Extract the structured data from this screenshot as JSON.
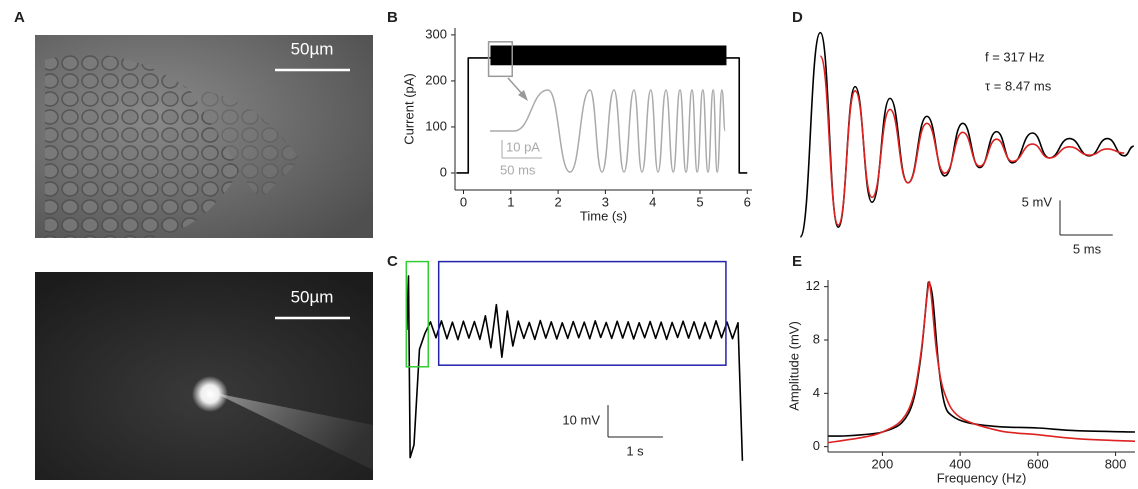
{
  "panel_labels": [
    "A",
    "B",
    "C",
    "D",
    "E"
  ],
  "images": [
    {
      "scale_bar_label": "50µm"
    },
    {
      "scale_bar_label": "50µm"
    }
  ],
  "chart_data": [
    {
      "type": "line",
      "xlabel": "Time (s)",
      "ylabel": "Current (pA)",
      "xlim": [
        -0.18,
        6.1
      ],
      "xticks": [
        0,
        1,
        2,
        3,
        4,
        5,
        6
      ],
      "ylim": [
        -37,
        315
      ],
      "yticks": [
        0,
        100,
        200,
        300
      ],
      "series": [
        {
          "color": "#000000",
          "x": [
            -0.15,
            0.1,
            0.1,
            5.83,
            5.83,
            6.0
          ],
          "values": [
            0,
            0,
            250,
            250,
            0,
            0
          ]
        }
      ],
      "bands": [
        {
          "color": "#000000",
          "x": [
            0.57,
            5.56
          ],
          "y": [
            234,
            277
          ]
        }
      ],
      "boxes": [
        {
          "color": "#999999",
          "x": [
            0.53,
            1.03
          ],
          "y": [
            210,
            285
          ]
        }
      ],
      "inset": {
        "color": "#aaaaaa",
        "x": [
          0,
          30,
          72.5,
          100,
          125,
          140,
          155,
          167.5,
          180,
          190,
          201,
          210,
          220,
          229,
          237.5,
          245,
          252.5,
          259,
          266,
          272.5,
          279,
          284,
          290,
          294
        ],
        "values": [
          0,
          0,
          22.8,
          -22.8,
          22.8,
          -22.8,
          22.8,
          -22.8,
          22.8,
          -22.8,
          22.8,
          -22.8,
          22.8,
          -22.8,
          22.8,
          -22.8,
          22.8,
          -22.8,
          22.8,
          -22.8,
          22.8,
          -22.8,
          22.8,
          0
        ],
        "scale_bars": [
          {
            "value": 10,
            "label": "10 pA"
          },
          {
            "value": 50,
            "label": "50 ms"
          }
        ]
      }
    },
    {
      "type": "line",
      "xlim": [
        -0.1,
        6.2
      ],
      "ylim": [
        -42,
        22
      ],
      "series": [
        {
          "color": "#000000",
          "x": [
            -0.03,
            0.0,
            0.03,
            0.1,
            0.2,
            0.3,
            0.4,
            0.5,
            0.6,
            0.7,
            0.8,
            0.9,
            1.0,
            1.1,
            1.2,
            1.3,
            1.4,
            1.5,
            1.6,
            1.7,
            1.8,
            1.9,
            2.0,
            2.1,
            2.2,
            2.3,
            2.4,
            2.5,
            2.6,
            2.7,
            2.8,
            2.9,
            3.0,
            3.1,
            3.2,
            3.3,
            3.4,
            3.5,
            3.6,
            3.7,
            3.8,
            3.9,
            4.0,
            4.1,
            4.2,
            4.3,
            4.4,
            4.5,
            4.6,
            4.7,
            4.8,
            4.9,
            5.0,
            5.1,
            5.2,
            5.3,
            5.4,
            5.5,
            5.6,
            5.7,
            5.8,
            5.9,
            6.0,
            6.08
          ],
          "values": [
            0,
            17,
            -40,
            -36,
            -6,
            -1,
            2.6,
            -2.4,
            2.9,
            -2.7,
            2.5,
            -3.0,
            2.8,
            -2.5,
            2.7,
            -2.9,
            4.5,
            -5.5,
            8.0,
            -8.5,
            6.0,
            -5.0,
            2.8,
            -2.6,
            2.4,
            -2.9,
            3.0,
            -2.5,
            2.6,
            -2.8,
            2.3,
            -2.6,
            2.7,
            -2.4,
            2.5,
            -2.7,
            2.9,
            -2.3,
            2.4,
            -2.6,
            2.8,
            -2.5,
            2.6,
            -2.8,
            2.3,
            -2.4,
            2.7,
            -2.6,
            2.5,
            -2.9,
            2.4,
            -2.3,
            2.8,
            -2.5,
            2.6,
            -2.7,
            2.4,
            -2.6,
            2.9,
            -2.4,
            2.5,
            -2.7,
            2.3,
            -41
          ]
        }
      ],
      "boxes": [
        {
          "color": "#33cc33",
          "x": [
            -0.04,
            0.36
          ],
          "y": [
            -11.5,
            21.5
          ]
        },
        {
          "color": "#2222aa",
          "x": [
            0.55,
            5.78
          ],
          "y": [
            -11,
            21.5
          ]
        }
      ],
      "scale_bars": [
        {
          "value": 10,
          "label": "10 mV"
        },
        {
          "value": 1,
          "label": "1 s"
        }
      ]
    },
    {
      "type": "line",
      "xlim": [
        -0.5,
        32
      ],
      "ylim": [
        -14,
        18.5
      ],
      "annotations": [
        "f = 317 Hz",
        "τ = 8.47 ms"
      ],
      "series": [
        {
          "color": "#000000",
          "x": [
            0,
            1.9,
            3.6,
            5.2,
            6.8,
            8.5,
            10.2,
            12.0,
            13.7,
            15.4,
            17.0,
            18.6,
            20.1,
            22.0,
            23.6,
            25.5,
            27.4,
            29.1,
            30.7,
            31.6
          ],
          "values": [
            -12.1,
            17.4,
            -10.7,
            9.6,
            -7.1,
            7.9,
            -4.3,
            5.3,
            -3.3,
            4.3,
            -2.1,
            3.1,
            -1.4,
            2.9,
            -0.7,
            2.1,
            -0.4,
            2.1,
            -0.4,
            1.0
          ]
        },
        {
          "color": "#dd2222",
          "x": [
            1.9,
            3.6,
            5.2,
            6.8,
            8.5,
            10.2,
            12.0,
            13.7,
            15.4,
            17.0,
            18.6,
            20.1,
            22.0,
            23.6,
            25.5,
            27.4,
            29.1,
            30.7
          ],
          "values": [
            14.0,
            -10.4,
            9.0,
            -6.4,
            6.3,
            -4.3,
            4.3,
            -2.9,
            3.0,
            -1.9,
            2.0,
            -1.2,
            1.3,
            -0.7,
            0.9,
            -0.3,
            0.6,
            0.0
          ]
        }
      ],
      "scale_bars": [
        {
          "value": 5,
          "label": "5 mV"
        },
        {
          "value": 5,
          "label": "5 ms"
        }
      ]
    },
    {
      "type": "line",
      "xlabel": "Frequency (Hz)",
      "ylabel": "Amplitude (mV)",
      "xlim": [
        60,
        850
      ],
      "xticks": [
        200,
        400,
        600,
        800
      ],
      "ylim": [
        -0.4,
        12.5
      ],
      "yticks": [
        0,
        4,
        8,
        12
      ],
      "series": [
        {
          "color": "#000000",
          "x": [
            60,
            100,
            150,
            200,
            250,
            280,
            300,
            315,
            320,
            330,
            345,
            360,
            380,
            420,
            500,
            600,
            700,
            850
          ],
          "values": [
            0.8,
            0.8,
            0.9,
            1.1,
            1.8,
            3.5,
            7,
            11.5,
            12.3,
            11,
            6,
            3.2,
            2.3,
            1.8,
            1.5,
            1.4,
            1.2,
            1.1
          ]
        },
        {
          "color": "#dd2222",
          "x": [
            60,
            150,
            200,
            250,
            280,
            300,
            318,
            325,
            340,
            360,
            400,
            500,
            600,
            700,
            850
          ],
          "values": [
            0.3,
            0.7,
            1.1,
            2,
            3.8,
            7.2,
            12,
            11.5,
            7,
            4,
            2.2,
            1.2,
            0.9,
            0.6,
            0.4
          ]
        }
      ]
    }
  ]
}
